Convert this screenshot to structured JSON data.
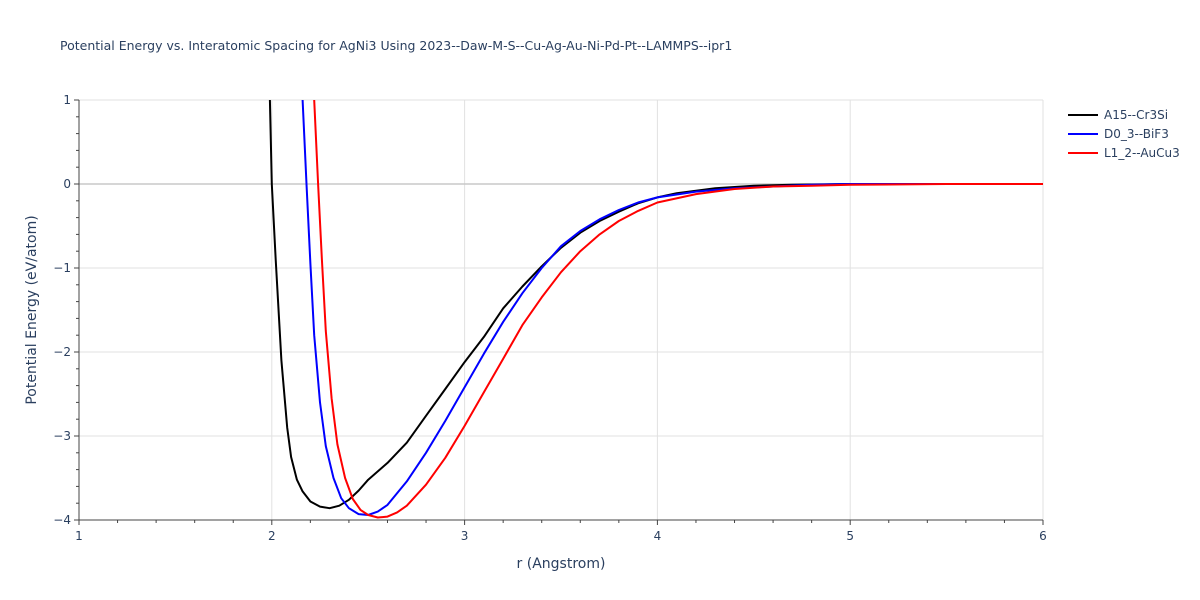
{
  "chart_data": {
    "type": "line",
    "title": "Potential Energy vs. Interatomic Spacing for AgNi3 Using 2023--Daw-M-S--Cu-Ag-Au-Ni-Pd-Pt--LAMMPS--ipr1",
    "xlabel": "r (Angstrom)",
    "ylabel": "Potential Energy (eV/atom)",
    "xlim": [
      1,
      6
    ],
    "ylim": [
      -4,
      1
    ],
    "x_ticks": [
      "1",
      "2",
      "3",
      "4",
      "5",
      "6"
    ],
    "y_ticks": [
      "1",
      "0",
      "−1",
      "−2",
      "−3",
      "−4"
    ],
    "x_tick_values": [
      1,
      2,
      3,
      4,
      5,
      6
    ],
    "y_tick_values": [
      1,
      0,
      -1,
      -2,
      -3,
      -4
    ],
    "grid": true,
    "legend_position": "top-right",
    "series": [
      {
        "name": "A15--Cr3Si",
        "color": "#000000",
        "x": [
          1.99,
          2.0,
          2.02,
          2.05,
          2.08,
          2.1,
          2.13,
          2.16,
          2.2,
          2.25,
          2.3,
          2.35,
          2.4,
          2.45,
          2.5,
          2.6,
          2.7,
          2.8,
          2.9,
          3.0,
          3.1,
          3.2,
          3.3,
          3.4,
          3.5,
          3.6,
          3.7,
          3.8,
          3.9,
          4.0,
          4.1,
          4.2,
          4.3,
          4.5,
          4.7,
          5.0,
          5.5,
          6.0
        ],
        "y": [
          1.0,
          0.0,
          -0.9,
          -2.1,
          -2.9,
          -3.25,
          -3.52,
          -3.66,
          -3.78,
          -3.84,
          -3.86,
          -3.83,
          -3.76,
          -3.65,
          -3.52,
          -3.32,
          -3.08,
          -2.76,
          -2.44,
          -2.12,
          -1.82,
          -1.48,
          -1.22,
          -0.98,
          -0.76,
          -0.58,
          -0.44,
          -0.33,
          -0.23,
          -0.16,
          -0.11,
          -0.08,
          -0.05,
          -0.02,
          -0.01,
          0.0,
          0.0,
          0.0
        ]
      },
      {
        "name": "D0_3--BiF3",
        "color": "#0000ff",
        "x": [
          2.16,
          2.18,
          2.2,
          2.22,
          2.25,
          2.28,
          2.32,
          2.36,
          2.4,
          2.45,
          2.5,
          2.55,
          2.6,
          2.7,
          2.8,
          2.9,
          3.0,
          3.1,
          3.2,
          3.3,
          3.4,
          3.5,
          3.6,
          3.7,
          3.8,
          3.9,
          4.0,
          4.2,
          4.4,
          4.6,
          4.8,
          5.0,
          5.5,
          6.0
        ],
        "y": [
          1.0,
          0.0,
          -0.95,
          -1.8,
          -2.6,
          -3.12,
          -3.5,
          -3.74,
          -3.86,
          -3.93,
          -3.94,
          -3.9,
          -3.82,
          -3.54,
          -3.2,
          -2.82,
          -2.42,
          -2.02,
          -1.64,
          -1.3,
          -1.0,
          -0.74,
          -0.56,
          -0.42,
          -0.31,
          -0.22,
          -0.16,
          -0.09,
          -0.05,
          -0.03,
          -0.01,
          0.0,
          0.0,
          0.0
        ]
      },
      {
        "name": "L1_2--AuCu3",
        "color": "#ff0000",
        "x": [
          2.22,
          2.24,
          2.26,
          2.28,
          2.31,
          2.34,
          2.38,
          2.42,
          2.46,
          2.5,
          2.55,
          2.6,
          2.65,
          2.7,
          2.8,
          2.9,
          3.0,
          3.1,
          3.2,
          3.3,
          3.4,
          3.5,
          3.6,
          3.7,
          3.8,
          3.9,
          4.0,
          4.2,
          4.4,
          4.6,
          4.8,
          5.0,
          5.5,
          6.0
        ],
        "y": [
          1.0,
          0.0,
          -0.9,
          -1.75,
          -2.55,
          -3.1,
          -3.5,
          -3.75,
          -3.88,
          -3.94,
          -3.97,
          -3.96,
          -3.91,
          -3.83,
          -3.58,
          -3.26,
          -2.88,
          -2.48,
          -2.08,
          -1.68,
          -1.35,
          -1.05,
          -0.8,
          -0.6,
          -0.44,
          -0.32,
          -0.22,
          -0.12,
          -0.06,
          -0.03,
          -0.02,
          -0.01,
          0.0,
          0.0
        ]
      }
    ]
  }
}
